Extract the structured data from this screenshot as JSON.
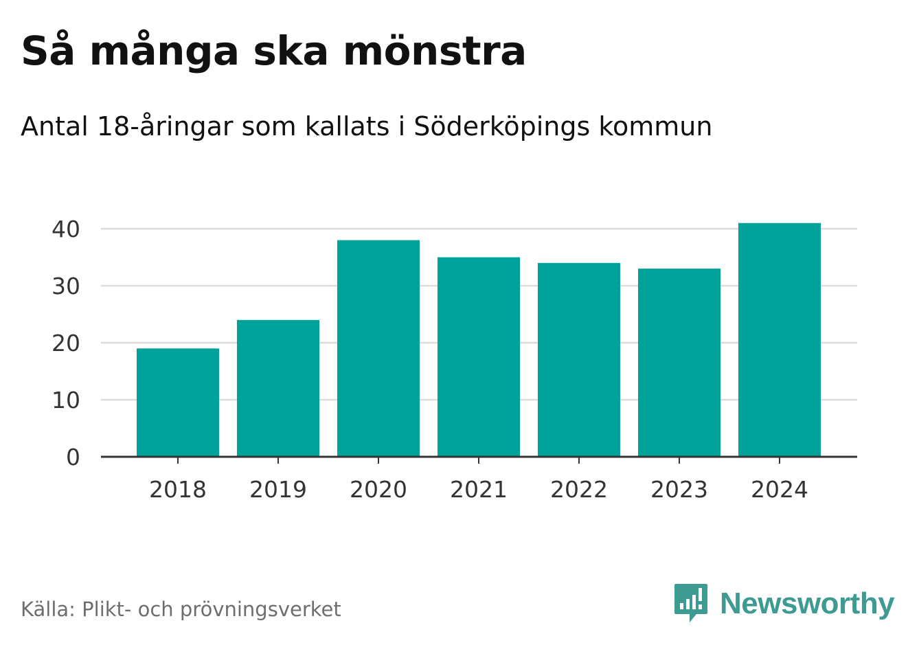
{
  "chart_data": {
    "type": "bar",
    "title": "Så många ska mönstra",
    "subtitle": "Antal 18-åringar som kallats i Söderköpings kommun",
    "categories": [
      "2018",
      "2019",
      "2020",
      "2021",
      "2022",
      "2023",
      "2024"
    ],
    "values": [
      19,
      24,
      38,
      35,
      34,
      33,
      41
    ],
    "xlabel": "",
    "ylabel": "",
    "ylim": [
      0,
      40
    ],
    "yticks": [
      "0",
      "10",
      "20",
      "30",
      "40"
    ],
    "grid": true,
    "bar_color": "#00a39a"
  },
  "footer": {
    "source": "Källa: Plikt- och prövningsverket",
    "brand": "Newsworthy",
    "brand_color": "#3d9b92"
  },
  "icons": {
    "logo": "newsworthy-logo-icon"
  }
}
